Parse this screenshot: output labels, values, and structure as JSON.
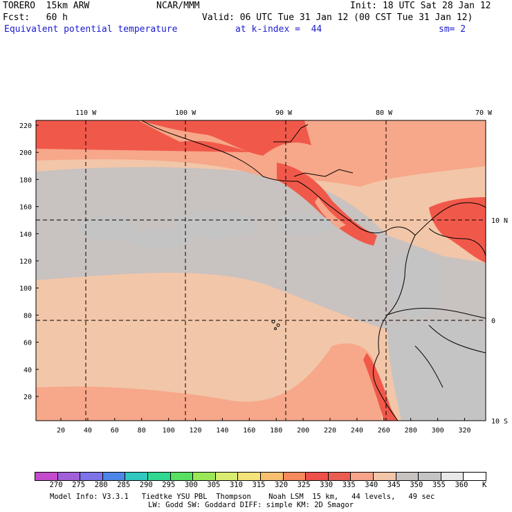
{
  "header": {
    "model": "TORERO  15km ARW",
    "center": "NCAR/MMM",
    "init": "Init: 18 UTC Sat 28 Jan 12",
    "fcst": "Fcst:   60 h",
    "valid": "Valid: 06 UTC Tue 31 Jan 12 (00 CST Tue 31 Jan 12)",
    "field": "Equivalent potential temperature",
    "level": "at k-index =  44",
    "smoothing": "sm= 2"
  },
  "map": {
    "lon_labels": [
      "110 W",
      "100 W",
      "90 W",
      "80 W",
      "70 W"
    ],
    "lat_labels": [
      "10 N",
      "0",
      "10 S"
    ],
    "x_ticks": [
      "20",
      "40",
      "60",
      "80",
      "100",
      "120",
      "140",
      "160",
      "180",
      "200",
      "220",
      "240",
      "260",
      "280",
      "300",
      "320"
    ],
    "y_ticks": [
      "220",
      "200",
      "180",
      "160",
      "140",
      "120",
      "100",
      "80",
      "60",
      "40",
      "20"
    ],
    "colors": {
      "ocean_low": "#f2c6a8",
      "ocean_mid": "#c8c2c0",
      "gray": "#c4c4c4",
      "salmon": "#f7a78a",
      "red": "#f0594a",
      "coast": "#000000"
    }
  },
  "colorbar": {
    "values": [
      "270",
      "275",
      "280",
      "285",
      "290",
      "295",
      "300",
      "305",
      "310",
      "315",
      "320",
      "325",
      "330",
      "335",
      "340",
      "345",
      "350",
      "355",
      "360"
    ],
    "unit": "K",
    "colors": [
      "#c44ccc",
      "#a060d8",
      "#7c74e8",
      "#4c86e8",
      "#30c8c0",
      "#30d890",
      "#58e060",
      "#9ae858",
      "#d8ec70",
      "#f4e27a",
      "#f6c070",
      "#f68a5c",
      "#f0504a",
      "#ea5e52",
      "#f7a38a",
      "#f2c6a8",
      "#c8c2c0",
      "#c4c4c4",
      "#e8e8e8",
      "#ffffff"
    ]
  },
  "footer": {
    "line1": "Model Info: V3.3.1   Tiedtke YSU PBL  Thompson    Noah LSM  15 km,   44 levels,   49 sec",
    "line2": "LW: Godd SW: Goddard DIFF: simple KM: 2D Smagor"
  }
}
